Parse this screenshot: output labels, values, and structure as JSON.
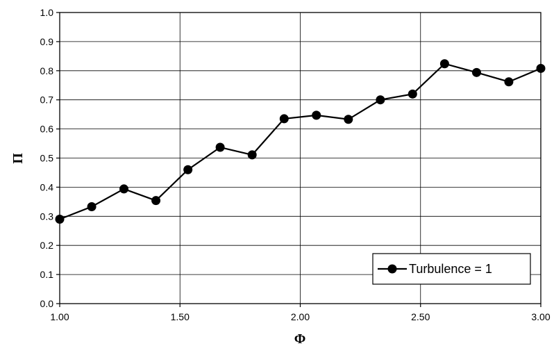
{
  "chart_data": {
    "type": "line",
    "xlabel": "Φ",
    "ylabel": "Π",
    "xlim": [
      1.0,
      3.0
    ],
    "ylim": [
      0.0,
      1.0
    ],
    "x_ticks": [
      "1.00",
      "1.50",
      "2.00",
      "2.50",
      "3.00"
    ],
    "y_ticks": [
      "0.0",
      "0.1",
      "0.2",
      "0.3",
      "0.4",
      "0.5",
      "0.6",
      "0.7",
      "0.8",
      "0.9",
      "1.0"
    ],
    "grid": true,
    "legend_position": "bottom-right",
    "series": [
      {
        "name": "Turbulence = 1",
        "color": "#000000",
        "x": [
          1.0,
          1.133,
          1.267,
          1.4,
          1.533,
          1.667,
          1.8,
          1.933,
          2.067,
          2.2,
          2.333,
          2.467,
          2.6,
          2.733,
          2.867,
          3.0
        ],
        "y": [
          0.29,
          0.333,
          0.394,
          0.354,
          0.46,
          0.537,
          0.511,
          0.635,
          0.647,
          0.633,
          0.7,
          0.72,
          0.824,
          0.794,
          0.762,
          0.808
        ]
      }
    ]
  }
}
